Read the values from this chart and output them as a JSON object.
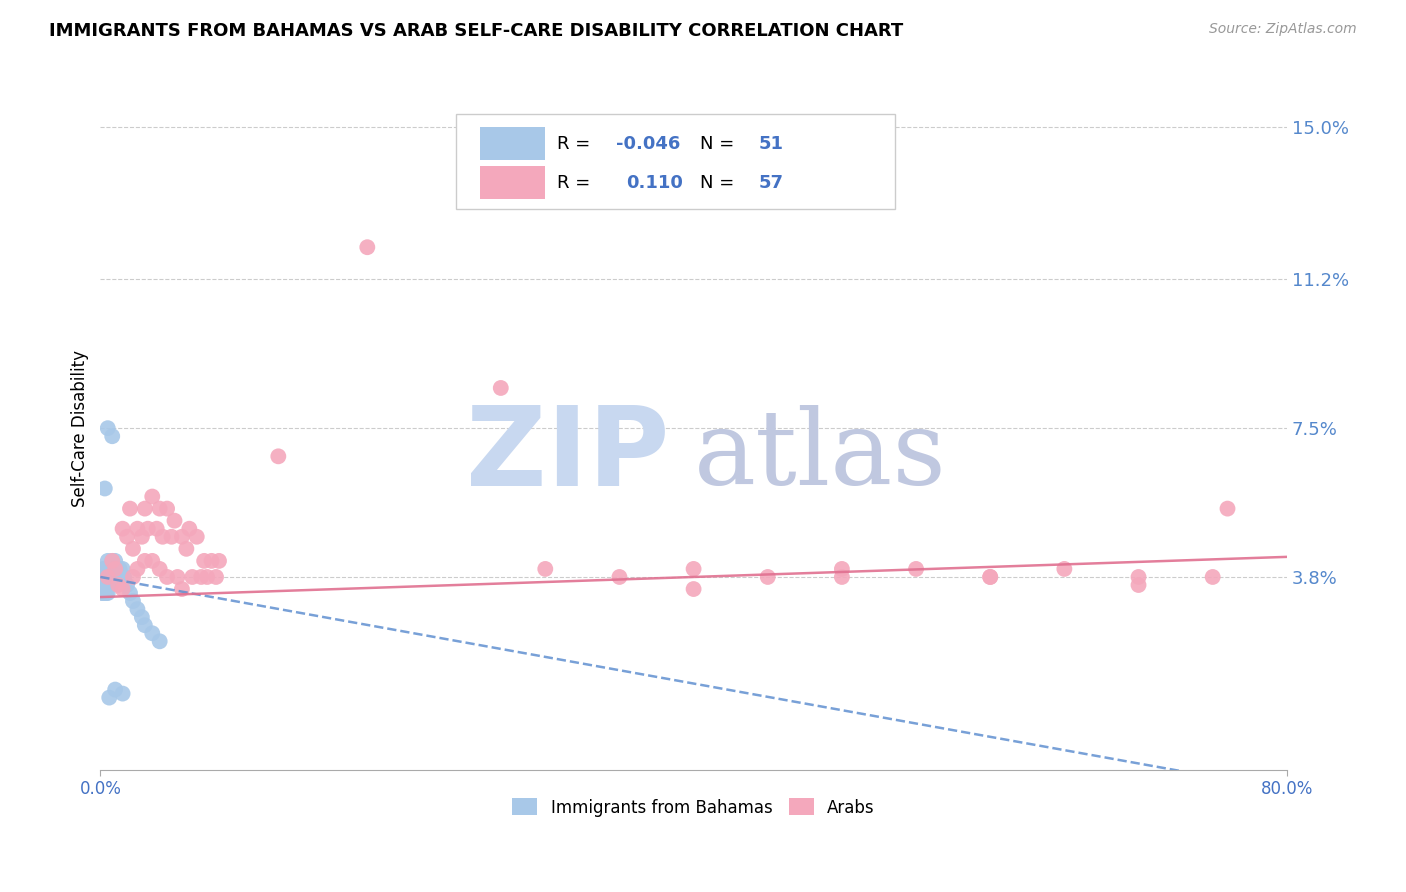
{
  "title": "IMMIGRANTS FROM BAHAMAS VS ARAB SELF-CARE DISABILITY CORRELATION CHART",
  "source": "Source: ZipAtlas.com",
  "ylabel": "Self-Care Disability",
  "xlim": [
    0.0,
    0.8
  ],
  "ylim": [
    -0.01,
    0.16
  ],
  "yticks": [
    0.038,
    0.075,
    0.112,
    0.15
  ],
  "ytick_labels": [
    "3.8%",
    "7.5%",
    "11.2%",
    "15.0%"
  ],
  "xtick_labels": [
    "0.0%",
    "80.0%"
  ],
  "xtick_positions": [
    0.0,
    0.8
  ],
  "blue_R": -0.046,
  "blue_N": 51,
  "pink_R": 0.11,
  "pink_N": 57,
  "blue_color": "#a8c8e8",
  "pink_color": "#f4a8bc",
  "blue_line_color": "#6090d0",
  "pink_line_color": "#e07090",
  "axis_label_color": "#5588cc",
  "text_blue_color": "#4472c4",
  "background_color": "#ffffff",
  "grid_color": "#cccccc",
  "watermark_zip_color": "#c8d8f0",
  "watermark_atlas_color": "#c0c8e0",
  "legend_label_blue": "Immigrants from Bahamas",
  "legend_label_pink": "Arabs",
  "blue_x": [
    0.001,
    0.001,
    0.001,
    0.002,
    0.002,
    0.002,
    0.002,
    0.003,
    0.003,
    0.003,
    0.003,
    0.004,
    0.004,
    0.004,
    0.004,
    0.005,
    0.005,
    0.005,
    0.005,
    0.006,
    0.006,
    0.006,
    0.007,
    0.007,
    0.007,
    0.008,
    0.008,
    0.009,
    0.009,
    0.01,
    0.01,
    0.011,
    0.012,
    0.013,
    0.014,
    0.015,
    0.016,
    0.018,
    0.02,
    0.022,
    0.025,
    0.028,
    0.03,
    0.035,
    0.04,
    0.005,
    0.008,
    0.003,
    0.006,
    0.01,
    0.015
  ],
  "blue_y": [
    0.038,
    0.036,
    0.034,
    0.04,
    0.038,
    0.036,
    0.034,
    0.04,
    0.038,
    0.036,
    0.034,
    0.04,
    0.038,
    0.036,
    0.034,
    0.042,
    0.038,
    0.036,
    0.034,
    0.04,
    0.038,
    0.036,
    0.04,
    0.038,
    0.036,
    0.042,
    0.038,
    0.04,
    0.038,
    0.042,
    0.038,
    0.04,
    0.038,
    0.04,
    0.038,
    0.04,
    0.038,
    0.036,
    0.034,
    0.032,
    0.03,
    0.028,
    0.026,
    0.024,
    0.022,
    0.075,
    0.073,
    0.06,
    0.008,
    0.01,
    0.009
  ],
  "pink_x": [
    0.005,
    0.008,
    0.01,
    0.012,
    0.015,
    0.015,
    0.018,
    0.02,
    0.022,
    0.022,
    0.025,
    0.025,
    0.028,
    0.03,
    0.03,
    0.032,
    0.035,
    0.035,
    0.038,
    0.04,
    0.04,
    0.042,
    0.045,
    0.045,
    0.048,
    0.05,
    0.052,
    0.055,
    0.055,
    0.058,
    0.06,
    0.062,
    0.065,
    0.068,
    0.07,
    0.072,
    0.075,
    0.078,
    0.08,
    0.3,
    0.35,
    0.4,
    0.45,
    0.5,
    0.55,
    0.6,
    0.65,
    0.7,
    0.75,
    0.18,
    0.27,
    0.12,
    0.4,
    0.5,
    0.6,
    0.7,
    0.76
  ],
  "pink_y": [
    0.038,
    0.042,
    0.04,
    0.036,
    0.05,
    0.035,
    0.048,
    0.055,
    0.045,
    0.038,
    0.05,
    0.04,
    0.048,
    0.055,
    0.042,
    0.05,
    0.058,
    0.042,
    0.05,
    0.055,
    0.04,
    0.048,
    0.055,
    0.038,
    0.048,
    0.052,
    0.038,
    0.048,
    0.035,
    0.045,
    0.05,
    0.038,
    0.048,
    0.038,
    0.042,
    0.038,
    0.042,
    0.038,
    0.042,
    0.04,
    0.038,
    0.04,
    0.038,
    0.038,
    0.04,
    0.038,
    0.04,
    0.038,
    0.038,
    0.12,
    0.085,
    0.068,
    0.035,
    0.04,
    0.038,
    0.036,
    0.055
  ]
}
